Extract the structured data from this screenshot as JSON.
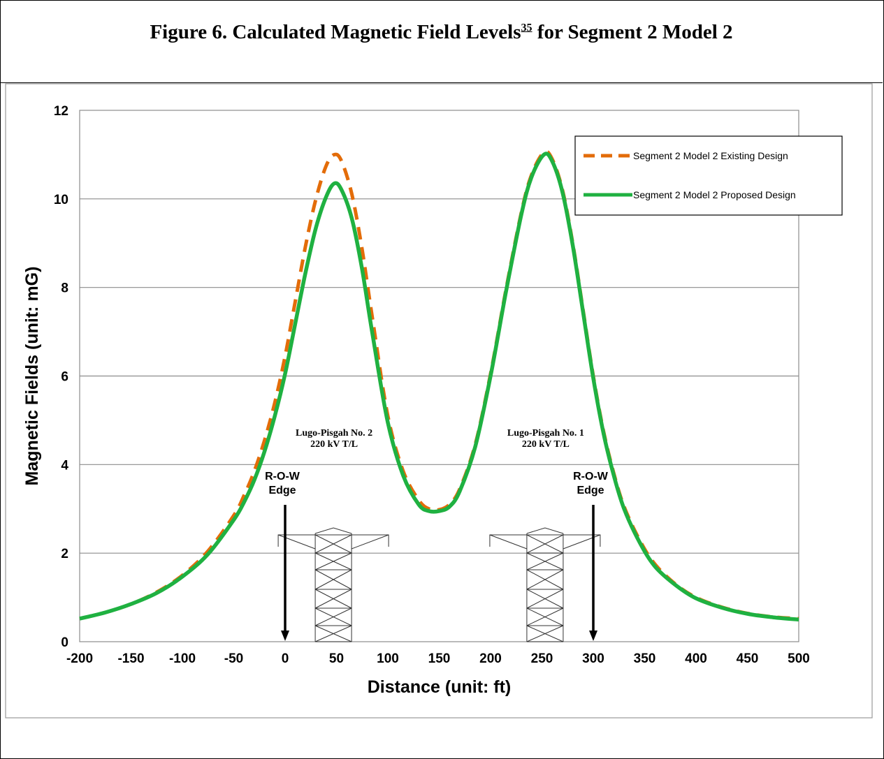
{
  "figure": {
    "title_main": "Figure 6.  Calculated Magnetic Field Levels",
    "title_ref": "35",
    "title_tail": " for Segment 2 Model 2"
  },
  "chart_data": {
    "type": "line",
    "xlabel": "Distance (unit: ft)",
    "ylabel": "Magnetic Fields (unit: mG)",
    "xlim": [
      -200,
      500
    ],
    "ylim": [
      0,
      12
    ],
    "x_ticks": [
      "-200",
      "-150",
      "-100",
      "-50",
      "0",
      "50",
      "100",
      "150",
      "200",
      "250",
      "300",
      "350",
      "400",
      "450",
      "500"
    ],
    "y_ticks": [
      "0",
      "2",
      "4",
      "6",
      "8",
      "10",
      "12"
    ],
    "grid": "horizontal",
    "legend_position": "top-right",
    "series": [
      {
        "name": "Segment 2 Model 2 Existing Design",
        "color": "#E36C09",
        "dash": true,
        "x": [
          -200,
          -175,
          -150,
          -125,
          -100,
          -75,
          -50,
          -40,
          -30,
          -20,
          -10,
          0,
          10,
          20,
          30,
          40,
          48,
          55,
          65,
          75,
          85,
          100,
          115,
          130,
          140,
          150,
          160,
          170,
          185,
          200,
          215,
          230,
          240,
          252,
          260,
          270,
          280,
          290,
          300,
          310,
          320,
          330,
          345,
          360,
          380,
          400,
          425,
          450,
          475,
          500
        ],
        "y": [
          0.52,
          0.66,
          0.85,
          1.12,
          1.5,
          2.05,
          2.85,
          3.3,
          3.85,
          4.55,
          5.4,
          6.45,
          7.7,
          8.95,
          10.0,
          10.75,
          11.0,
          10.85,
          10.1,
          8.85,
          7.3,
          5.1,
          3.85,
          3.2,
          3.0,
          2.98,
          3.1,
          3.45,
          4.45,
          6.05,
          7.95,
          9.7,
          10.55,
          11.05,
          10.9,
          10.2,
          9.0,
          7.5,
          6.0,
          4.75,
          3.8,
          3.05,
          2.3,
          1.75,
          1.3,
          1.0,
          0.78,
          0.64,
          0.56,
          0.52
        ]
      },
      {
        "name": "Segment 2 Model 2 Proposed Design",
        "color": "#1FB141",
        "dash": false,
        "x": [
          -200,
          -175,
          -150,
          -125,
          -100,
          -75,
          -50,
          -40,
          -30,
          -20,
          -10,
          0,
          10,
          20,
          30,
          40,
          48,
          55,
          65,
          75,
          85,
          100,
          115,
          130,
          140,
          150,
          160,
          170,
          185,
          200,
          215,
          230,
          240,
          252,
          260,
          270,
          280,
          290,
          300,
          310,
          320,
          330,
          345,
          360,
          380,
          400,
          425,
          450,
          475,
          500
        ],
        "y": [
          0.52,
          0.66,
          0.85,
          1.1,
          1.47,
          1.98,
          2.75,
          3.15,
          3.65,
          4.3,
          5.1,
          6.05,
          7.2,
          8.35,
          9.35,
          10.05,
          10.35,
          10.2,
          9.55,
          8.4,
          6.95,
          4.95,
          3.75,
          3.1,
          2.95,
          2.95,
          3.05,
          3.4,
          4.4,
          6.0,
          7.9,
          9.65,
          10.5,
          11.0,
          10.85,
          10.15,
          8.95,
          7.45,
          5.95,
          4.7,
          3.75,
          3.0,
          2.25,
          1.7,
          1.28,
          0.98,
          0.77,
          0.63,
          0.55,
          0.5
        ]
      }
    ],
    "annotations": [
      {
        "lines": [
          "Lugo-Pisgah No. 2",
          "220 kV T/L"
        ],
        "x": 47
      },
      {
        "lines": [
          "Lugo-Pisgah No. 1",
          "220 kV T/L"
        ],
        "x": 253
      },
      {
        "lines": [
          "R-O-W",
          "Edge"
        ],
        "x": 0,
        "kind": "arrow"
      },
      {
        "lines": [
          "R-O-W",
          "Edge"
        ],
        "x": 300,
        "kind": "arrow"
      }
    ]
  }
}
